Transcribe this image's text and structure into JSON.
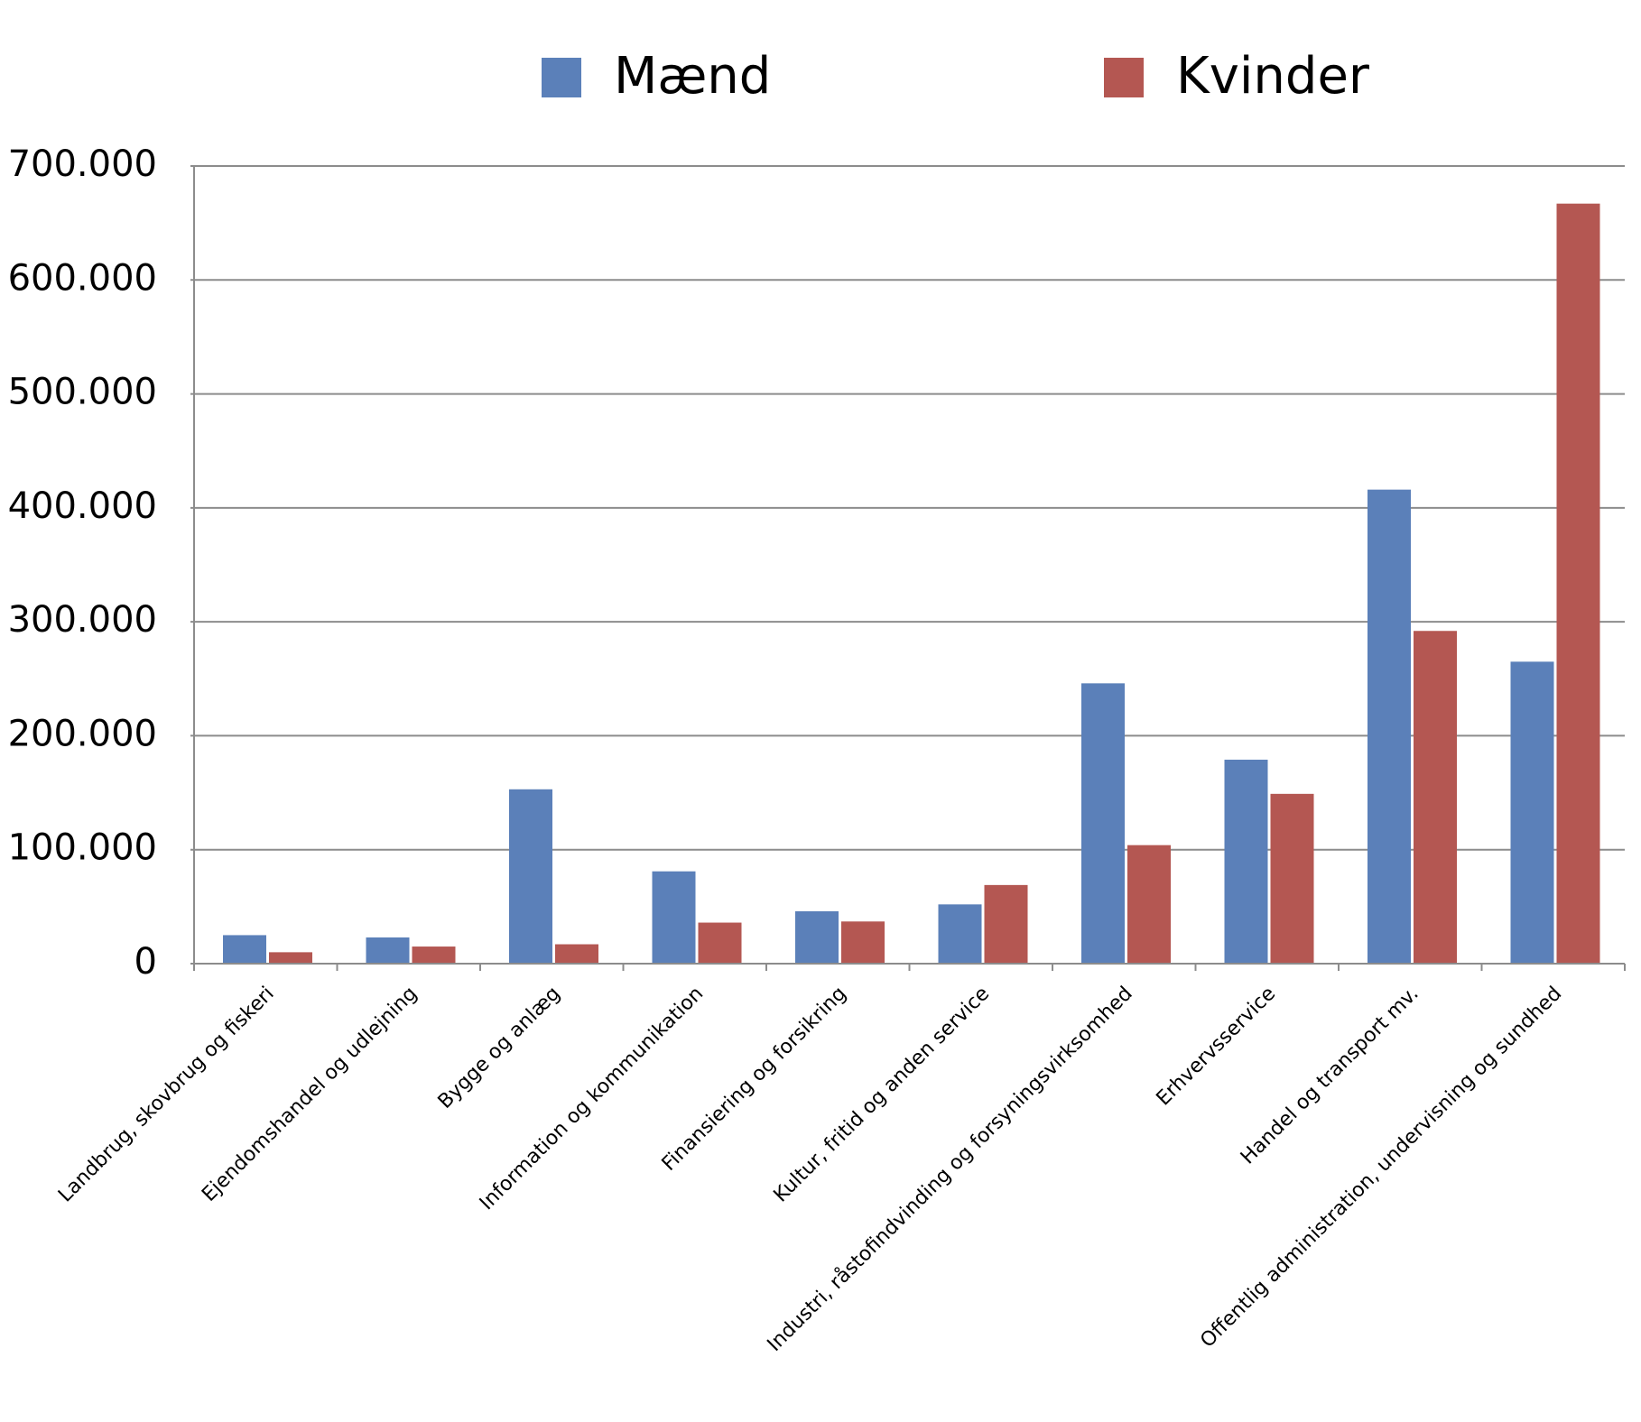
{
  "chart_data": {
    "type": "bar",
    "categories": [
      "Landbrug, skovbrug og fiskeri",
      "Ejendomshandel og udlejning",
      "Bygge og anlæg",
      "Information og kommunikation",
      "Finansiering og forsikring",
      "Kultur, fritid og anden service",
      "Industri, råstofindvinding og forsyningsvirksomhed",
      "Erhvervsservice",
      "Handel og transport mv.",
      "Offentlig administration, undervisning og sundhed"
    ],
    "series": [
      {
        "name": "Mænd",
        "color": "#5b80b9",
        "values": [
          25000,
          23000,
          153000,
          81000,
          46000,
          52000,
          246000,
          179000,
          416000,
          265000
        ]
      },
      {
        "name": "Kvinder",
        "color": "#b45752",
        "values": [
          10000,
          15000,
          17000,
          36000,
          37000,
          69000,
          104000,
          149000,
          292000,
          667000
        ]
      }
    ],
    "ylim": [
      0,
      700000
    ],
    "yticks": [
      0,
      {
        "value": 100000,
        "label": "100.000"
      },
      {
        "value": 200000,
        "label": "200.000"
      },
      {
        "value": 300000,
        "label": "300.000"
      },
      {
        "value": 400000,
        "label": "400.000"
      },
      {
        "value": 500000,
        "label": "500.000"
      },
      {
        "value": 600000,
        "label": "600.000"
      },
      {
        "value": 700000,
        "label": "700.000"
      }
    ],
    "grid": true,
    "legend": "top"
  }
}
